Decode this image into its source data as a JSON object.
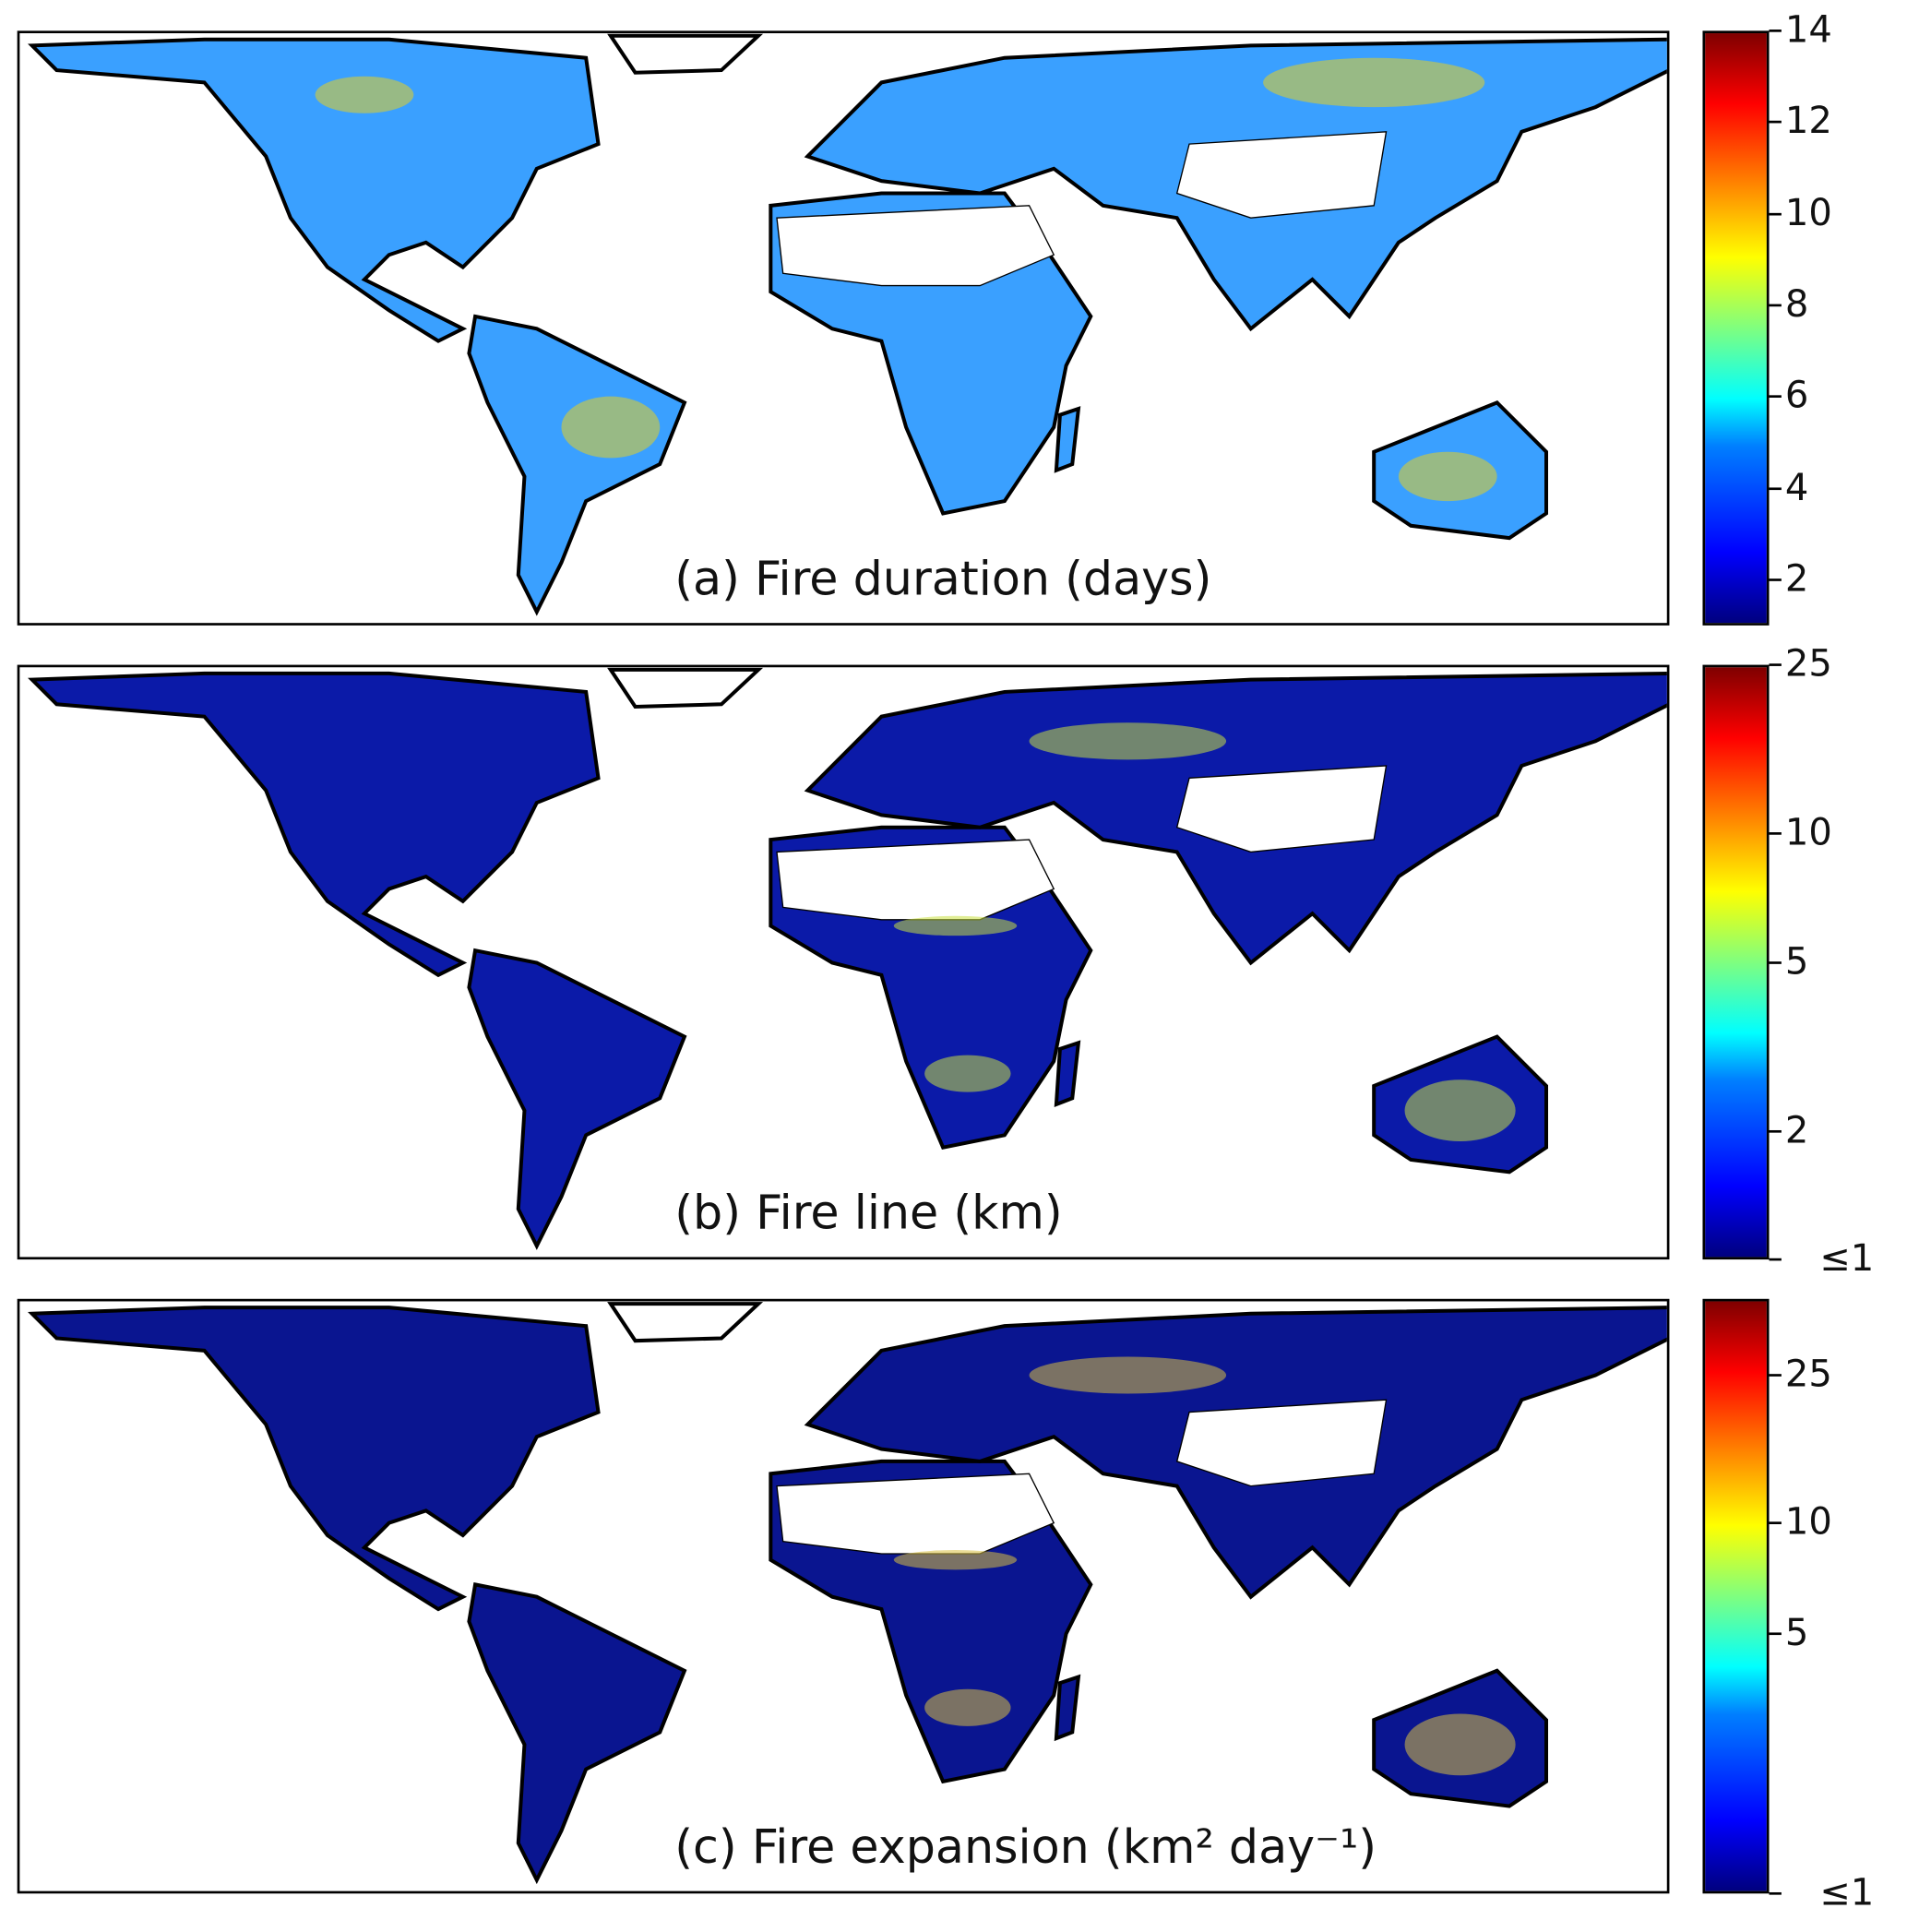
{
  "chart_data": [
    {
      "type": "heatmap",
      "title": "(a) Fire duration (days)",
      "colormap": "jet",
      "scale": "linear",
      "range": [
        1,
        14
      ],
      "colorbar_ticks": [
        {
          "label": "2",
          "value": 2
        },
        {
          "label": "4",
          "value": 4
        },
        {
          "label": "6",
          "value": 6
        },
        {
          "label": "8",
          "value": 8
        },
        {
          "label": "10",
          "value": 10
        },
        {
          "label": "12",
          "value": 12
        },
        {
          "label": "14",
          "value": 14
        }
      ],
      "fill": "#3aa0ff",
      "hot": "#e5d020"
    },
    {
      "type": "heatmap",
      "title": "(b) Fire line (km)",
      "colormap": "jet",
      "scale": "log",
      "range": [
        1,
        25
      ],
      "colorbar_ticks": [
        {
          "label": "≤1",
          "value": 1
        },
        {
          "label": "2",
          "value": 2
        },
        {
          "label": "5",
          "value": 5
        },
        {
          "label": "10",
          "value": 10
        },
        {
          "label": "25",
          "value": 25
        }
      ],
      "fill": "#0b1aa8",
      "hot": "#c8e040"
    },
    {
      "type": "heatmap",
      "title": "(c) Fire expansion (km² day⁻¹)",
      "colormap": "jet",
      "scale": "log",
      "range": [
        1,
        40
      ],
      "colorbar_ticks": [
        {
          "label": "≤1",
          "value": 1
        },
        {
          "label": "5",
          "value": 5
        },
        {
          "label": "10",
          "value": 10
        },
        {
          "label": "25",
          "value": 25
        }
      ],
      "fill": "#0a1590",
      "hot": "#d8c040"
    }
  ]
}
